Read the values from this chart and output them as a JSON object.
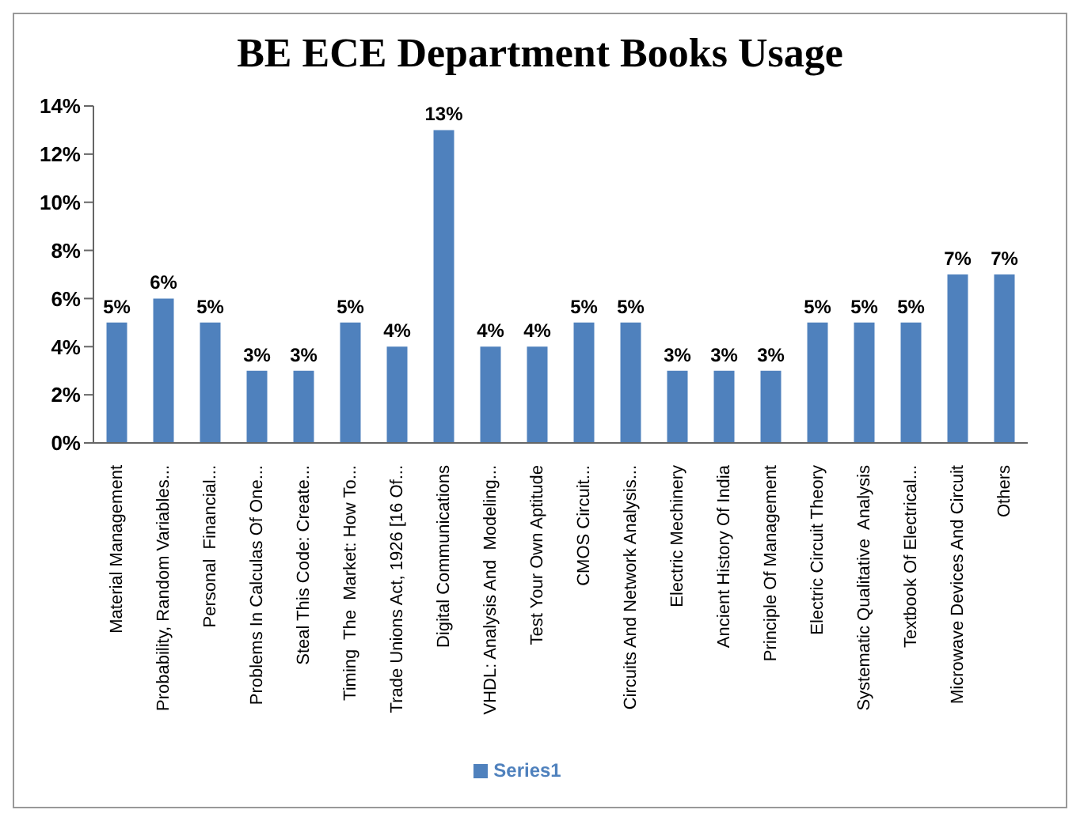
{
  "chart_data": {
    "type": "bar",
    "title": "BE ECE Department Books Usage",
    "categories": [
      "Material Management",
      "Probability, Random Variables...",
      "Personal  Financial...",
      "Problems In Calculas Of One...",
      "Steal This Code: Create...",
      "Timing  The  Market: How To...",
      "Trade Unions Act, 1926 [16 Of...",
      "Digital Communications",
      "VHDL: Analysis And  Modeling...",
      "Test Your Own Aptitude",
      "CMOS Circuit...",
      "Circuits And Network Analysis...",
      "Electric Mechinery",
      "Ancient History Of India",
      "Principle Of Management",
      "Electric Circuit Theory",
      "Systematic Qualitative  Analysis",
      "Textbook Of Electrical...",
      "Microwave Devices And Circuit",
      "Others"
    ],
    "series": [
      {
        "name": "Series1",
        "color": "#4f81bd",
        "values": [
          5,
          6,
          5,
          3,
          3,
          5,
          4,
          13,
          4,
          4,
          5,
          5,
          3,
          3,
          3,
          5,
          5,
          5,
          7,
          7
        ],
        "value_labels": [
          "5%",
          "6%",
          "5%",
          "3%",
          "3%",
          "5%",
          "4%",
          "13%",
          "4%",
          "4%",
          "5%",
          "5%",
          "3%",
          "3%",
          "3%",
          "5%",
          "5%",
          "5%",
          "7%",
          "7%"
        ]
      }
    ],
    "ylim": [
      0,
      14
    ],
    "yticks": [
      {
        "value": 0,
        "label": "0%"
      },
      {
        "value": 2,
        "label": "2%"
      },
      {
        "value": 4,
        "label": "4%"
      },
      {
        "value": 6,
        "label": "6%"
      },
      {
        "value": 8,
        "label": "8%"
      },
      {
        "value": 10,
        "label": "10%"
      },
      {
        "value": 12,
        "label": "12%"
      },
      {
        "value": 14,
        "label": "14%"
      }
    ],
    "grid": false,
    "legend": "bottom"
  }
}
